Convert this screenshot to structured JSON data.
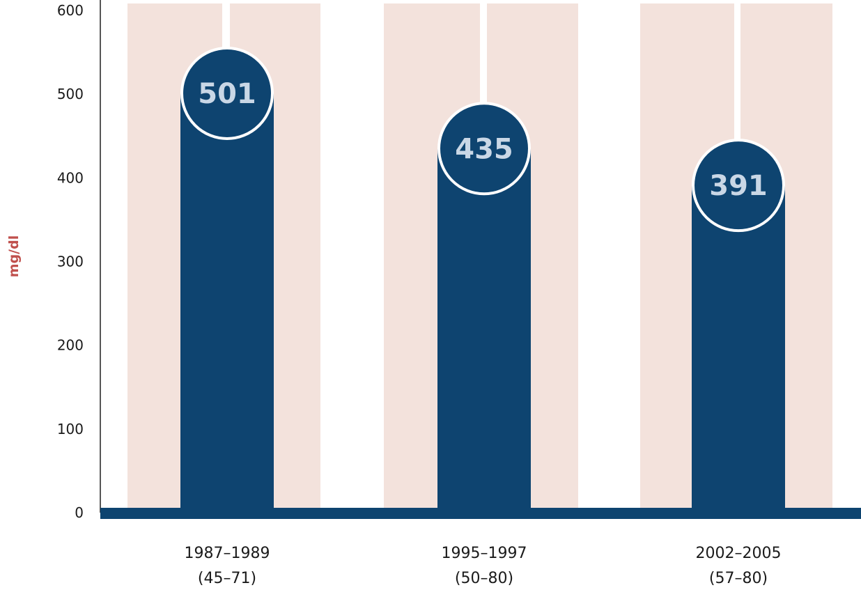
{
  "chart_data": {
    "type": "bar",
    "categories": [
      {
        "period": "1987–1989",
        "ages": "(45–71)"
      },
      {
        "period": "1995–1997",
        "ages": "(50–80)"
      },
      {
        "period": "2002–2005",
        "ages": "(57–80)"
      }
    ],
    "values": [
      501,
      435,
      391
    ],
    "value_labels": [
      "501",
      "435",
      "391"
    ],
    "ylabel": "mg/dl",
    "ylim": [
      0,
      600
    ],
    "yticks": [
      "0",
      "100",
      "200",
      "300",
      "400",
      "500",
      "600"
    ],
    "colors": {
      "bar": "#0e4470",
      "band": "#f3e2dc",
      "axis": "#0e4470",
      "ylabel": "#c0504d",
      "bubble_text": "#c9d7e6"
    }
  }
}
